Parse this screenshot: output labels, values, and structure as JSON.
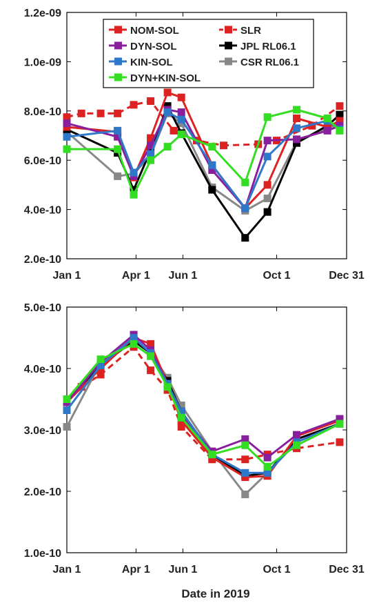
{
  "figure": {
    "xlabel": "Date in 2019"
  },
  "chart_data": [
    {
      "type": "line",
      "x_tick_labels": [
        {
          "day": 1,
          "label": "Jan 1"
        },
        {
          "day": 91,
          "label": "Apr 1"
        },
        {
          "day": 152,
          "label": "Jun 1"
        },
        {
          "day": 274,
          "label": "Oct 1"
        },
        {
          "day": 365,
          "label": "Dec 31"
        }
      ],
      "xlim": [
        1,
        365
      ],
      "ylim": [
        2e-10,
        1.2e-09
      ],
      "y_ticks": [
        {
          "value": 2e-10,
          "label": "2.0e-10"
        },
        {
          "value": 4e-10,
          "label": "4.0e-10"
        },
        {
          "value": 6e-10,
          "label": "6.0e-10"
        },
        {
          "value": 8e-10,
          "label": "8.0e-10"
        },
        {
          "value": 1e-09,
          "label": "1.0e-09"
        },
        {
          "value": 1.2e-09,
          "label": "1.2e-09"
        }
      ],
      "legend_position": "top-center",
      "series": [
        {
          "name": "SLR",
          "color": "#dd2222",
          "dashed": true,
          "z": 1,
          "points": [
            [
              1,
              7.75e-10
            ],
            [
              20,
              7.9e-10
            ],
            [
              45,
              7.9e-10
            ],
            [
              67,
              7.9e-10
            ],
            [
              88,
              8.25e-10
            ],
            [
              110,
              8.4e-10
            ],
            [
              140,
              7.2e-10
            ],
            [
              170,
              6.8e-10
            ],
            [
              205,
              6.6e-10
            ],
            [
              250,
              6.65e-10
            ],
            [
              274,
              6.8e-10
            ],
            [
              320,
              7.4e-10
            ],
            [
              356,
              8.2e-10
            ]
          ]
        },
        {
          "name": "CSR RL06.1",
          "color": "#888888",
          "dashed": false,
          "z": 2,
          "points": [
            [
              1,
              7.15e-10
            ],
            [
              67,
              5.35e-10
            ],
            [
              88,
              5.45e-10
            ],
            [
              110,
              6.2e-10
            ],
            [
              132,
              7.9e-10
            ],
            [
              150,
              7.5e-10
            ],
            [
              190,
              4.9e-10
            ],
            [
              233,
              3.95e-10
            ],
            [
              262,
              4.45e-10
            ],
            [
              300,
              6.75e-10
            ],
            [
              340,
              7.3e-10
            ],
            [
              356,
              7.5e-10
            ]
          ]
        },
        {
          "name": "JPL RL06.1",
          "color": "#000000",
          "dashed": false,
          "z": 3,
          "points": [
            [
              1,
              7.25e-10
            ],
            [
              67,
              6.3e-10
            ],
            [
              88,
              4.8e-10
            ],
            [
              110,
              6.4e-10
            ],
            [
              132,
              8.2e-10
            ],
            [
              150,
              7.1e-10
            ],
            [
              190,
              4.8e-10
            ],
            [
              233,
              2.85e-10
            ],
            [
              262,
              3.9e-10
            ],
            [
              300,
              6.7e-10
            ],
            [
              340,
              7.4e-10
            ],
            [
              356,
              7.85e-10
            ]
          ]
        },
        {
          "name": "NOM-SOL",
          "color": "#dd2222",
          "dashed": false,
          "z": 4,
          "points": [
            [
              1,
              7.35e-10
            ],
            [
              67,
              7.15e-10
            ],
            [
              88,
              5.3e-10
            ],
            [
              110,
              6.9e-10
            ],
            [
              132,
              8.75e-10
            ],
            [
              150,
              8.55e-10
            ],
            [
              190,
              5.8e-10
            ],
            [
              233,
              4.05e-10
            ],
            [
              262,
              5e-10
            ],
            [
              300,
              7.7e-10
            ],
            [
              340,
              7.35e-10
            ],
            [
              356,
              7.6e-10
            ]
          ]
        },
        {
          "name": "DYN-SOL",
          "color": "#8a1f9e",
          "dashed": false,
          "z": 5,
          "points": [
            [
              1,
              7.5e-10
            ],
            [
              67,
              6.95e-10
            ],
            [
              88,
              5.35e-10
            ],
            [
              110,
              6.6e-10
            ],
            [
              132,
              8.05e-10
            ],
            [
              150,
              7.95e-10
            ],
            [
              190,
              5.6e-10
            ],
            [
              233,
              4.05e-10
            ],
            [
              262,
              6.8e-10
            ],
            [
              300,
              6.85e-10
            ],
            [
              340,
              7.2e-10
            ],
            [
              356,
              7.4e-10
            ]
          ]
        },
        {
          "name": "KIN-SOL",
          "color": "#2f78c9",
          "dashed": false,
          "z": 6,
          "points": [
            [
              1,
              6.95e-10
            ],
            [
              67,
              7.2e-10
            ],
            [
              88,
              5.5e-10
            ],
            [
              110,
              6.25e-10
            ],
            [
              132,
              7.95e-10
            ],
            [
              150,
              7.65e-10
            ],
            [
              190,
              5.8e-10
            ],
            [
              233,
              4.05e-10
            ],
            [
              262,
              6.15e-10
            ],
            [
              300,
              7.3e-10
            ],
            [
              340,
              7.6e-10
            ],
            [
              356,
              7.25e-10
            ]
          ]
        },
        {
          "name": "DYN+KIN-SOL",
          "color": "#33dd22",
          "dashed": false,
          "z": 7,
          "points": [
            [
              1,
              6.45e-10
            ],
            [
              67,
              6.45e-10
            ],
            [
              88,
              4.6e-10
            ],
            [
              110,
              6e-10
            ],
            [
              132,
              6.55e-10
            ],
            [
              150,
              7.05e-10
            ],
            [
              190,
              6.55e-10
            ],
            [
              233,
              5.1e-10
            ],
            [
              262,
              7.75e-10
            ],
            [
              300,
              8.05e-10
            ],
            [
              340,
              7.7e-10
            ],
            [
              356,
              7.2e-10
            ]
          ]
        }
      ]
    },
    {
      "type": "line",
      "x_tick_labels": [
        {
          "day": 1,
          "label": "Jan 1"
        },
        {
          "day": 91,
          "label": "Apr 1"
        },
        {
          "day": 152,
          "label": "Jun 1"
        },
        {
          "day": 274,
          "label": "Oct 1"
        },
        {
          "day": 365,
          "label": "Dec 31"
        }
      ],
      "xlim": [
        1,
        365
      ],
      "ylim": [
        1e-10,
        5e-10
      ],
      "y_ticks": [
        {
          "value": 1e-10,
          "label": "1.0e-10"
        },
        {
          "value": 2e-10,
          "label": "2.0e-10"
        },
        {
          "value": 3e-10,
          "label": "3.0e-10"
        },
        {
          "value": 4e-10,
          "label": "4.0e-10"
        },
        {
          "value": 5e-10,
          "label": "5.0e-10"
        }
      ],
      "series": [
        {
          "name": "SLR",
          "color": "#dd2222",
          "dashed": true,
          "z": 1,
          "points": [
            [
              1,
              3.5e-10
            ],
            [
              20,
              3.7e-10
            ],
            [
              45,
              3.9e-10
            ],
            [
              88,
              4.35e-10
            ],
            [
              110,
              3.97e-10
            ],
            [
              132,
              3.65e-10
            ],
            [
              150,
              3.05e-10
            ],
            [
              190,
              2.52e-10
            ],
            [
              233,
              2.52e-10
            ],
            [
              262,
              2.6e-10
            ],
            [
              300,
              2.7e-10
            ],
            [
              356,
              2.8e-10
            ]
          ]
        },
        {
          "name": "CSR RL06.1",
          "color": "#888888",
          "dashed": false,
          "z": 2,
          "points": [
            [
              1,
              3.05e-10
            ],
            [
              45,
              4.1e-10
            ],
            [
              88,
              4.5e-10
            ],
            [
              110,
              4.25e-10
            ],
            [
              132,
              3.85e-10
            ],
            [
              150,
              3.4e-10
            ],
            [
              190,
              2.65e-10
            ],
            [
              233,
              1.95e-10
            ],
            [
              262,
              2.3e-10
            ],
            [
              300,
              2.85e-10
            ],
            [
              356,
              3.1e-10
            ]
          ]
        },
        {
          "name": "JPL RL06.1",
          "color": "#000000",
          "dashed": false,
          "z": 3,
          "points": [
            [
              1,
              3.45e-10
            ],
            [
              45,
              4.05e-10
            ],
            [
              88,
              4.45e-10
            ],
            [
              110,
              4.25e-10
            ],
            [
              132,
              3.8e-10
            ],
            [
              150,
              3.3e-10
            ],
            [
              190,
              2.6e-10
            ],
            [
              233,
              2.25e-10
            ],
            [
              262,
              2.3e-10
            ],
            [
              300,
              2.85e-10
            ],
            [
              356,
              3.1e-10
            ]
          ]
        },
        {
          "name": "NOM-SOL",
          "color": "#dd2222",
          "dashed": false,
          "z": 4,
          "points": [
            [
              1,
              3.45e-10
            ],
            [
              45,
              4e-10
            ],
            [
              88,
              4.5e-10
            ],
            [
              110,
              4.4e-10
            ],
            [
              132,
              3.75e-10
            ],
            [
              150,
              3.15e-10
            ],
            [
              190,
              2.55e-10
            ],
            [
              233,
              2.23e-10
            ],
            [
              262,
              2.25e-10
            ],
            [
              300,
              2.9e-10
            ],
            [
              356,
              3.15e-10
            ]
          ]
        },
        {
          "name": "DYN-SOL",
          "color": "#8a1f9e",
          "dashed": false,
          "z": 5,
          "points": [
            [
              1,
              3.45e-10
            ],
            [
              45,
              4.1e-10
            ],
            [
              88,
              4.55e-10
            ],
            [
              110,
              4.3e-10
            ],
            [
              132,
              3.75e-10
            ],
            [
              150,
              3.25e-10
            ],
            [
              190,
              2.65e-10
            ],
            [
              233,
              2.85e-10
            ],
            [
              262,
              2.55e-10
            ],
            [
              300,
              2.92e-10
            ],
            [
              356,
              3.18e-10
            ]
          ]
        },
        {
          "name": "KIN-SOL",
          "color": "#2f78c9",
          "dashed": false,
          "z": 6,
          "points": [
            [
              1,
              3.32e-10
            ],
            [
              45,
              4.05e-10
            ],
            [
              88,
              4.5e-10
            ],
            [
              110,
              4.25e-10
            ],
            [
              132,
              3.75e-10
            ],
            [
              150,
              3.3e-10
            ],
            [
              190,
              2.6e-10
            ],
            [
              233,
              2.3e-10
            ],
            [
              262,
              2.3e-10
            ],
            [
              300,
              2.8e-10
            ],
            [
              356,
              3.1e-10
            ]
          ]
        },
        {
          "name": "DYN+KIN-SOL",
          "color": "#33dd22",
          "dashed": false,
          "z": 7,
          "points": [
            [
              1,
              3.5e-10
            ],
            [
              45,
              4.15e-10
            ],
            [
              88,
              4.4e-10
            ],
            [
              110,
              4.2e-10
            ],
            [
              132,
              3.7e-10
            ],
            [
              150,
              3.2e-10
            ],
            [
              190,
              2.6e-10
            ],
            [
              233,
              2.75e-10
            ],
            [
              262,
              2.4e-10
            ],
            [
              300,
              2.75e-10
            ],
            [
              356,
              3.1e-10
            ]
          ]
        }
      ]
    }
  ]
}
